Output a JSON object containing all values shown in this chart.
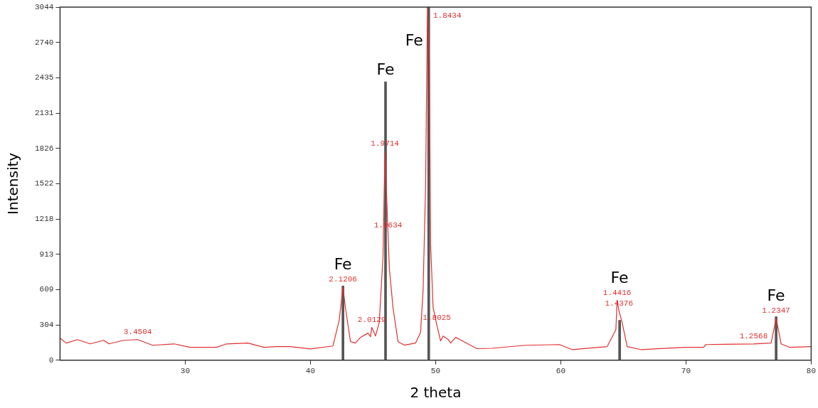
{
  "chart_data": {
    "type": "line",
    "xlabel": "2 theta",
    "ylabel": "Intensity",
    "xlim": [
      20,
      80
    ],
    "ylim": [
      0,
      3044
    ],
    "xticks": [
      30,
      40,
      50,
      60,
      70,
      80
    ],
    "yticks": [
      0,
      304,
      609,
      913,
      1218,
      1522,
      1826,
      2131,
      2435,
      2740,
      3044
    ],
    "grid": false,
    "legend": false,
    "marker": "none",
    "series": [
      {
        "color": "#e03030",
        "x": [
          20,
          20.5,
          21.4,
          22.4,
          23.5,
          23.9,
          25.1,
          26.2,
          27.4,
          29.1,
          30.4,
          32.5,
          33.3,
          35,
          36.3,
          37.3,
          38.4,
          40,
          41.8,
          42.3,
          42.6,
          42.8,
          43.2,
          43.6,
          44,
          44.6,
          44.8,
          44.9,
          45.2,
          45.5,
          45.8,
          45.95,
          46.2,
          46.3,
          46.6,
          47,
          47.5,
          48.4,
          48.8,
          49,
          49.2,
          49.35,
          49.5,
          49.6,
          49.8,
          50.1,
          50.4,
          50.6,
          51,
          51.2,
          51.6,
          52,
          53,
          53.3,
          54.5,
          57.2,
          59.9,
          60.9,
          63.7,
          64.2,
          64.4,
          64.5,
          64.65,
          64.9,
          65.3,
          66.4,
          69.9,
          71.4,
          71.6,
          75.4,
          76.8,
          77.2,
          77.6,
          78.3,
          80
        ],
        "values": [
          190,
          148,
          178,
          141,
          172,
          141,
          172,
          178,
          129,
          141,
          111,
          111,
          141,
          148,
          111,
          117,
          117,
          98,
          123,
          344,
          633,
          449,
          160,
          148,
          197,
          234,
          203,
          283,
          209,
          326,
          900,
          1800,
          1100,
          800,
          450,
          160,
          130,
          148,
          240,
          600,
          1500,
          3044,
          2600,
          1000,
          455,
          301,
          166,
          209,
          180,
          148,
          197,
          175,
          117,
          100,
          103,
          129,
          135,
          92,
          117,
          221,
          264,
          517,
          424,
          326,
          117,
          92,
          111,
          111,
          135,
          141,
          148,
          363,
          141,
          111,
          117
        ],
        "name": null
      },
      {
        "type": "bar",
        "color": "#555555",
        "x": [
          42.6,
          46.0,
          49.45,
          64.7,
          77.2
        ],
        "values": [
          640,
          2400,
          3044,
          344,
          375
        ]
      }
    ],
    "annotations": [
      {
        "text": "3.4504",
        "x": 26.2,
        "y": 178
      },
      {
        "text": "2.1206",
        "x": 42.6,
        "y": 633
      },
      {
        "text": "Fe",
        "x": 42.6,
        "y": 640
      },
      {
        "text": "2.0129",
        "x": 44.9,
        "y": 283
      },
      {
        "text": "1.9714",
        "x": 45.95,
        "y": 1800
      },
      {
        "text": "1.9634",
        "x": 46.2,
        "y": 1100
      },
      {
        "text": "Fe",
        "x": 46.0,
        "y": 2400
      },
      {
        "text": "Fe",
        "x": 49.45,
        "y": 3044
      },
      {
        "text": "1.8434",
        "x": 49.35,
        "y": 3044
      },
      {
        "text": "1.8025",
        "x": 50.1,
        "y": 301
      },
      {
        "text": "Fe",
        "x": 64.7,
        "y": 344
      },
      {
        "text": "1.4416",
        "x": 64.5,
        "y": 517
      },
      {
        "text": "1.4376",
        "x": 64.65,
        "y": 424
      },
      {
        "text": "Fe",
        "x": 77.2,
        "y": 375
      },
      {
        "text": "1.2347",
        "x": 77.2,
        "y": 363
      },
      {
        "text": "1.2568",
        "x": 75.4,
        "y": 141
      }
    ]
  }
}
